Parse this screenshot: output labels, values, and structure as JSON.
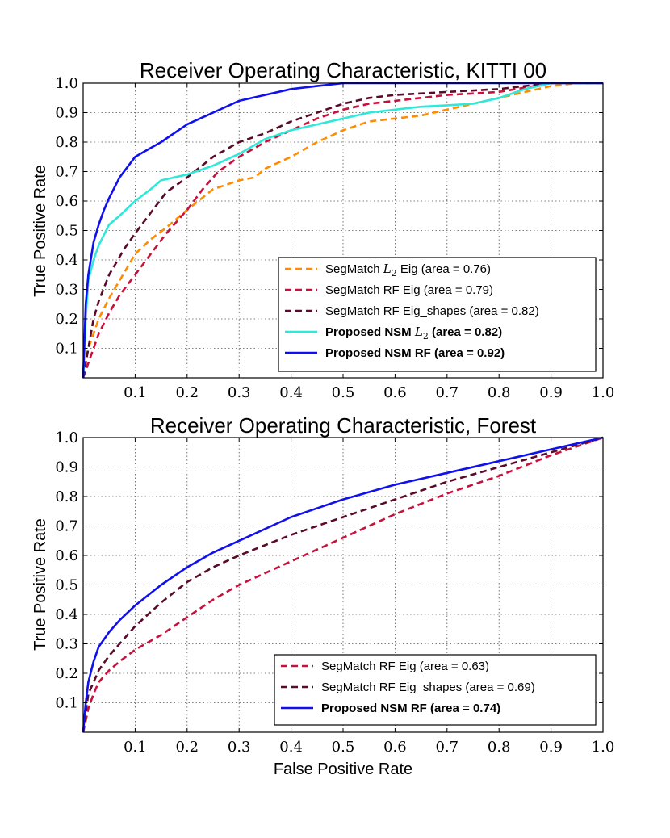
{
  "chart_data": [
    {
      "type": "line",
      "title": "Receiver Operating Characteristic, KITTI 00",
      "xlabel": "",
      "ylabel": "True Positive Rate",
      "xlim": [
        0,
        1
      ],
      "ylim": [
        0,
        1
      ],
      "xticks": [
        "0.1",
        "0.2",
        "0.3",
        "0.4",
        "0.5",
        "0.6",
        "0.7",
        "0.8",
        "0.9",
        "1.0"
      ],
      "yticks": [
        "0.1",
        "0.2",
        "0.3",
        "0.4",
        "0.5",
        "0.6",
        "0.7",
        "0.8",
        "0.9",
        "1.0"
      ],
      "grid": true,
      "legend_position": "lower-right",
      "series": [
        {
          "name": "SegMatch L2 Eig (area = 0.76)",
          "legend_prefix": "SegMatch ",
          "legend_math": "L",
          "legend_sub": "2",
          "legend_suffix": " Eig (area = 0.76)",
          "color": "#ff8c00",
          "dash": true,
          "bold": false,
          "x": [
            0,
            0.005,
            0.01,
            0.02,
            0.03,
            0.05,
            0.07,
            0.1,
            0.13,
            0.16,
            0.2,
            0.25,
            0.3,
            0.33,
            0.35,
            0.4,
            0.45,
            0.5,
            0.55,
            0.6,
            0.65,
            0.7,
            0.75,
            0.8,
            0.85,
            0.9,
            0.95,
            1.0
          ],
          "y": [
            0,
            0.05,
            0.1,
            0.15,
            0.2,
            0.27,
            0.33,
            0.42,
            0.47,
            0.51,
            0.57,
            0.64,
            0.67,
            0.68,
            0.71,
            0.75,
            0.8,
            0.84,
            0.87,
            0.88,
            0.89,
            0.91,
            0.93,
            0.95,
            0.97,
            0.99,
            1.0,
            1.0
          ]
        },
        {
          "name": "SegMatch RF Eig (area = 0.79)",
          "legend_prefix": "SegMatch RF Eig (area = 0.79)",
          "color": "#c8103c",
          "dash": true,
          "bold": false,
          "x": [
            0,
            0.01,
            0.02,
            0.03,
            0.05,
            0.07,
            0.1,
            0.13,
            0.16,
            0.2,
            0.23,
            0.26,
            0.3,
            0.35,
            0.4,
            0.45,
            0.5,
            0.55,
            0.6,
            0.7,
            0.8,
            0.85,
            0.9,
            1.0
          ],
          "y": [
            0,
            0.05,
            0.1,
            0.15,
            0.22,
            0.28,
            0.35,
            0.42,
            0.49,
            0.57,
            0.64,
            0.7,
            0.75,
            0.8,
            0.84,
            0.88,
            0.91,
            0.93,
            0.94,
            0.96,
            0.97,
            0.985,
            1.0,
            1.0
          ]
        },
        {
          "name": "SegMatch RF Eig_shapes (area = 0.82)",
          "legend_prefix": "SegMatch RF Eig_shapes (area = 0.82)",
          "color": "#5a0a2a",
          "dash": true,
          "bold": false,
          "x": [
            0,
            0.01,
            0.02,
            0.03,
            0.05,
            0.08,
            0.1,
            0.13,
            0.16,
            0.2,
            0.25,
            0.3,
            0.35,
            0.4,
            0.45,
            0.5,
            0.55,
            0.6,
            0.7,
            0.8,
            0.85,
            0.9,
            1.0
          ],
          "y": [
            0,
            0.1,
            0.2,
            0.26,
            0.35,
            0.44,
            0.49,
            0.56,
            0.63,
            0.68,
            0.75,
            0.8,
            0.83,
            0.87,
            0.9,
            0.93,
            0.95,
            0.96,
            0.97,
            0.98,
            0.99,
            1.0,
            1.0
          ]
        },
        {
          "name": "Proposed NSM L2 (area = 0.82)",
          "legend_prefix": "Proposed NSM ",
          "legend_math": "L",
          "legend_sub": "2",
          "legend_suffix": "  (area = 0.82)",
          "color": "#2ee8d8",
          "dash": false,
          "bold": true,
          "x": [
            0,
            0.005,
            0.01,
            0.02,
            0.03,
            0.05,
            0.07,
            0.1,
            0.13,
            0.15,
            0.2,
            0.25,
            0.3,
            0.35,
            0.4,
            0.45,
            0.5,
            0.55,
            0.6,
            0.65,
            0.7,
            0.75,
            0.8,
            0.85,
            0.9,
            1.0
          ],
          "y": [
            0,
            0.2,
            0.33,
            0.4,
            0.45,
            0.52,
            0.55,
            0.6,
            0.64,
            0.67,
            0.69,
            0.72,
            0.76,
            0.81,
            0.84,
            0.86,
            0.88,
            0.9,
            0.91,
            0.92,
            0.925,
            0.93,
            0.95,
            0.98,
            1.0,
            1.0
          ]
        },
        {
          "name": "Proposed NSM RF (area = 0.92)",
          "legend_prefix": "Proposed NSM RF  (area = 0.92)",
          "color": "#1010ee",
          "dash": false,
          "bold": true,
          "x": [
            0,
            0.005,
            0.01,
            0.02,
            0.03,
            0.04,
            0.05,
            0.07,
            0.1,
            0.13,
            0.15,
            0.2,
            0.25,
            0.3,
            0.35,
            0.4,
            0.45,
            0.5,
            0.6,
            0.7,
            0.8,
            0.9,
            1.0
          ],
          "y": [
            0,
            0.25,
            0.35,
            0.46,
            0.52,
            0.57,
            0.61,
            0.68,
            0.75,
            0.78,
            0.8,
            0.86,
            0.9,
            0.94,
            0.96,
            0.98,
            0.99,
            1.0,
            1.0,
            1.0,
            1.0,
            1.0,
            1.0
          ]
        }
      ]
    },
    {
      "type": "line",
      "title": "Receiver Operating Characteristic, Forest",
      "xlabel": "False Positive Rate",
      "ylabel": "True Positive Rate",
      "xlim": [
        0,
        1
      ],
      "ylim": [
        0,
        1
      ],
      "xticks": [
        "0.1",
        "0.2",
        "0.3",
        "0.4",
        "0.5",
        "0.6",
        "0.7",
        "0.8",
        "0.9",
        "1.0"
      ],
      "yticks": [
        "0.1",
        "0.2",
        "0.3",
        "0.4",
        "0.5",
        "0.6",
        "0.7",
        "0.8",
        "0.9",
        "1.0"
      ],
      "grid": true,
      "legend_position": "lower-right",
      "series": [
        {
          "name": "SegMatch RF Eig (area = 0.63)",
          "legend_prefix": "SegMatch RF Eig  (area = 0.63)",
          "color": "#c8103c",
          "dash": true,
          "bold": false,
          "x": [
            0,
            0.01,
            0.02,
            0.03,
            0.05,
            0.07,
            0.1,
            0.15,
            0.2,
            0.25,
            0.3,
            0.4,
            0.5,
            0.6,
            0.7,
            0.8,
            0.9,
            1.0
          ],
          "y": [
            0,
            0.08,
            0.13,
            0.17,
            0.21,
            0.24,
            0.28,
            0.33,
            0.39,
            0.45,
            0.5,
            0.58,
            0.66,
            0.74,
            0.81,
            0.87,
            0.94,
            1.0
          ]
        },
        {
          "name": "SegMatch RF Eig_shapes (area = 0.69)",
          "legend_prefix": "SegMatch RF Eig_shapes  (area = 0.69)",
          "color": "#5a0a2a",
          "dash": true,
          "bold": false,
          "x": [
            0,
            0.01,
            0.02,
            0.03,
            0.05,
            0.07,
            0.1,
            0.15,
            0.2,
            0.25,
            0.3,
            0.4,
            0.5,
            0.6,
            0.7,
            0.8,
            0.9,
            1.0
          ],
          "y": [
            0,
            0.13,
            0.17,
            0.21,
            0.26,
            0.3,
            0.36,
            0.44,
            0.51,
            0.56,
            0.6,
            0.67,
            0.73,
            0.79,
            0.85,
            0.9,
            0.95,
            1.0
          ]
        },
        {
          "name": "Proposed NSM RF (area = 0.74)",
          "legend_prefix": "Proposed NSM RF  (area = 0.74)",
          "color": "#1010ee",
          "dash": false,
          "bold": true,
          "x": [
            0,
            0.005,
            0.01,
            0.02,
            0.03,
            0.05,
            0.07,
            0.1,
            0.15,
            0.2,
            0.25,
            0.3,
            0.4,
            0.5,
            0.6,
            0.7,
            0.8,
            0.9,
            1.0
          ],
          "y": [
            0,
            0.1,
            0.17,
            0.24,
            0.29,
            0.34,
            0.38,
            0.43,
            0.5,
            0.56,
            0.61,
            0.65,
            0.73,
            0.79,
            0.84,
            0.88,
            0.92,
            0.96,
            1.0
          ]
        }
      ]
    }
  ]
}
